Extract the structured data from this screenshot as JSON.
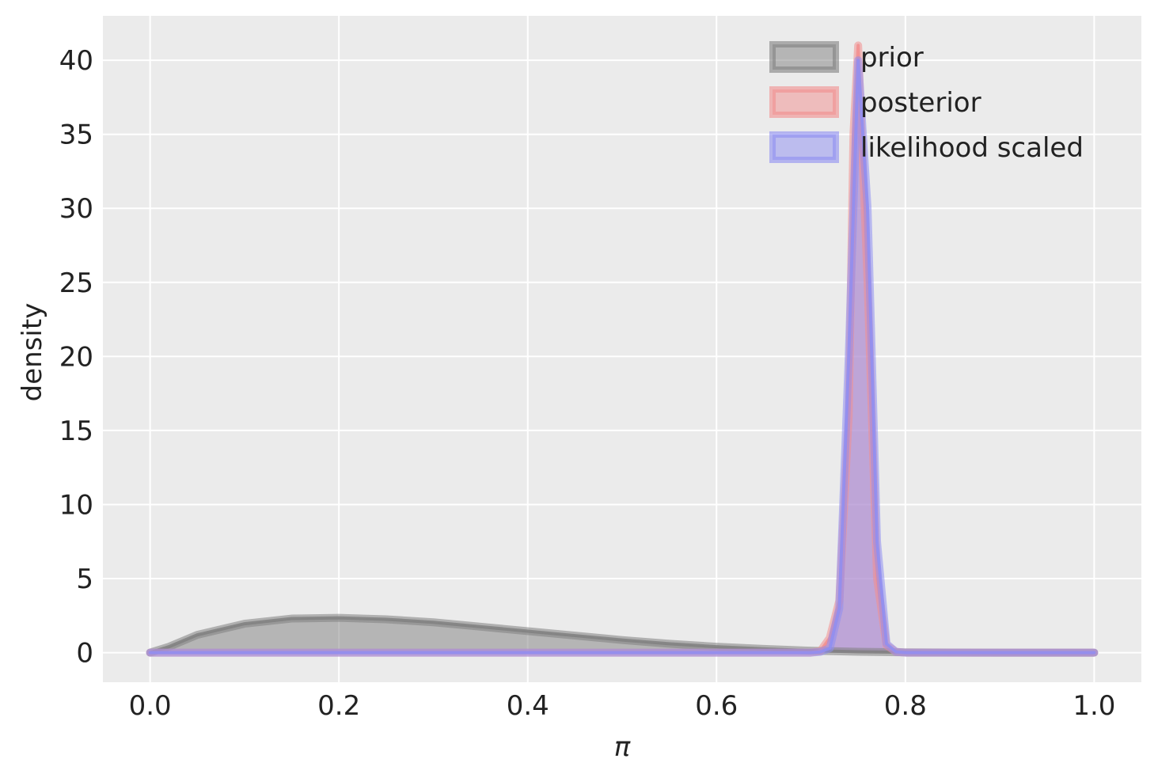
{
  "chart_data": {
    "type": "area",
    "title": "",
    "xlabel": "π",
    "ylabel": "density",
    "xlim": [
      -0.05,
      1.05
    ],
    "ylim": [
      -2,
      43
    ],
    "xticks": [
      0.0,
      0.2,
      0.4,
      0.6,
      0.8,
      1.0
    ],
    "xtick_labels": [
      "0.0",
      "0.2",
      "0.4",
      "0.6",
      "0.8",
      "1.0"
    ],
    "yticks": [
      0,
      5,
      10,
      15,
      20,
      25,
      30,
      35,
      40
    ],
    "ytick_labels": [
      "0",
      "5",
      "10",
      "15",
      "20",
      "25",
      "30",
      "35",
      "40"
    ],
    "grid": true,
    "legend_position": "top-right",
    "series": [
      {
        "name": "prior",
        "color": "#808080",
        "x": [
          0.0,
          0.02,
          0.05,
          0.1,
          0.15,
          0.2,
          0.25,
          0.3,
          0.35,
          0.4,
          0.45,
          0.5,
          0.55,
          0.6,
          0.65,
          0.7,
          0.75,
          0.8,
          0.85,
          0.9,
          0.95,
          1.0
        ],
        "y": [
          0.0,
          0.4,
          1.2,
          1.95,
          2.3,
          2.35,
          2.25,
          2.05,
          1.75,
          1.45,
          1.15,
          0.85,
          0.6,
          0.4,
          0.25,
          0.13,
          0.06,
          0.02,
          0.005,
          0.0,
          0.0,
          0.0
        ]
      },
      {
        "name": "posterior",
        "color": "#f28e8e",
        "x": [
          0.0,
          0.7,
          0.71,
          0.72,
          0.73,
          0.74,
          0.745,
          0.75,
          0.76,
          0.77,
          0.78,
          0.79,
          0.8,
          1.0
        ],
        "y": [
          0.0,
          0.0,
          0.1,
          1.0,
          3.5,
          16.0,
          35.0,
          41.0,
          25.0,
          5.0,
          0.5,
          0.05,
          0.0,
          0.0
        ]
      },
      {
        "name": "likelihood scaled",
        "color": "#8e8ef2",
        "x": [
          0.0,
          0.7,
          0.71,
          0.72,
          0.73,
          0.74,
          0.75,
          0.76,
          0.77,
          0.78,
          0.79,
          0.8,
          1.0
        ],
        "y": [
          0.0,
          0.0,
          0.05,
          0.3,
          3.0,
          20.0,
          40.0,
          30.0,
          7.5,
          0.6,
          0.05,
          0.0,
          0.0
        ]
      }
    ]
  }
}
